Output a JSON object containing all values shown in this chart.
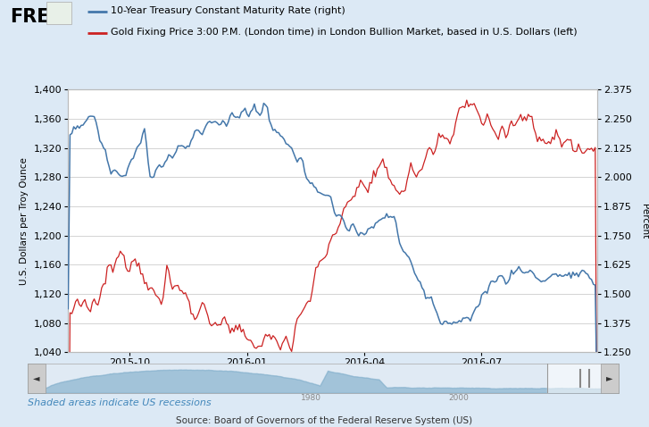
{
  "legend_blue": "10-Year Treasury Constant Maturity Rate (right)",
  "legend_red": "Gold Fixing Price 3:00 P.M. (London time) in London Bullion Market, based in U.S. Dollars (left)",
  "ylabel_left": "U.S. Dollars per Troy Ounce",
  "ylabel_right": "Percent",
  "xlabel_ticks": [
    "2015-10",
    "2016-01",
    "2016-04",
    "2016-07"
  ],
  "gold_ylim": [
    1040,
    1400
  ],
  "gold_yticks": [
    1040,
    1080,
    1120,
    1160,
    1200,
    1240,
    1280,
    1320,
    1360,
    1400
  ],
  "tbond_ylim": [
    1.25,
    2.375
  ],
  "tbond_yticks": [
    1.25,
    1.375,
    1.5,
    1.625,
    1.75,
    1.875,
    2.0,
    2.125,
    2.25,
    2.375
  ],
  "background_color": "#dce9f5",
  "plot_bg_color": "#ffffff",
  "blue_color": "#4477aa",
  "red_color": "#cc2222",
  "source_text": "Source: Board of Governors of the Federal Reserve System (US)",
  "shaded_text": "Shaded areas indicate US recessions",
  "annotation_color": "#4488bb",
  "n_points": 285,
  "total_days": 413
}
